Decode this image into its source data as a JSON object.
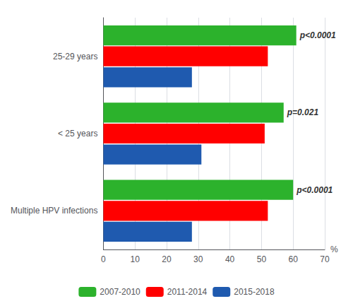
{
  "chart_data": {
    "type": "bar",
    "orientation": "horizontal",
    "categories": [
      "25-29 years",
      "< 25 years",
      "Multiple HPV infections"
    ],
    "series": [
      {
        "name": "2007-2010",
        "color": "#2CB22C",
        "values": [
          61,
          57,
          60
        ]
      },
      {
        "name": "2011-2014",
        "color": "#FF0000",
        "values": [
          52,
          51,
          52
        ]
      },
      {
        "name": "2015-2018",
        "color": "#1F5AAF",
        "values": [
          28,
          31,
          28
        ]
      }
    ],
    "annotations": [
      {
        "category": "25-29 years",
        "series": "2007-2010",
        "text": "p<0.0001"
      },
      {
        "category": "< 25 years",
        "series": "2007-2010",
        "text": "p=0.021"
      },
      {
        "category": "Multiple HPV infections",
        "series": "2007-2010",
        "text": "p<0.0001"
      }
    ],
    "xlabel": "%",
    "xlim": [
      0,
      70
    ],
    "xticks": [
      0,
      10,
      20,
      30,
      40,
      50,
      60,
      70
    ],
    "grid": true,
    "legend": "bottom"
  }
}
